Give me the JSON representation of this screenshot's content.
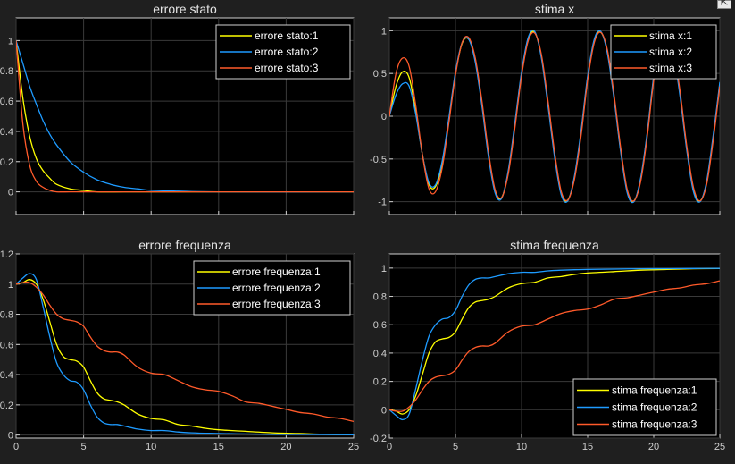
{
  "toolbar": {
    "export_icon": "export-arrow-icon"
  },
  "colors": {
    "background": "#1f1f1f",
    "axes_bg": "#000000",
    "axis": "#cfcfcf",
    "grid": "#3a3a3a",
    "series": [
      "#ffff00",
      "#1e9bff",
      "#ff5a2a"
    ]
  },
  "chart_data": [
    {
      "type": "line",
      "title": "errore stato",
      "xlim": [
        0,
        25
      ],
      "ylim": [
        -0.15,
        1.15
      ],
      "xticks": [
        0,
        5,
        10,
        15,
        20,
        25
      ],
      "yticks": [
        0,
        0.2,
        0.4,
        0.6,
        0.8,
        1
      ],
      "ytick_labels": [
        "0",
        "0.2",
        "0.4",
        "0.6",
        "0.8",
        "1"
      ],
      "show_xtick_labels": false,
      "grid": true,
      "legend": "top-right",
      "series": [
        {
          "name": "errore stato:1",
          "x": [
            0,
            0.5,
            1,
            1.5,
            2,
            2.5,
            3,
            4,
            5,
            6,
            8,
            10,
            25
          ],
          "y": [
            1,
            0.62,
            0.37,
            0.22,
            0.14,
            0.09,
            0.05,
            0.02,
            0.01,
            0,
            0,
            0,
            0
          ]
        },
        {
          "name": "errore stato:2",
          "x": [
            0,
            0.5,
            1,
            1.5,
            2,
            2.5,
            3,
            4,
            5,
            6,
            7,
            8,
            9,
            10,
            12,
            15,
            25
          ],
          "y": [
            1,
            0.85,
            0.7,
            0.58,
            0.47,
            0.38,
            0.31,
            0.2,
            0.13,
            0.08,
            0.05,
            0.03,
            0.02,
            0.01,
            0.005,
            0,
            0
          ]
        },
        {
          "name": "errore stato:3",
          "x": [
            0,
            0.5,
            1,
            1.5,
            2,
            2.5,
            3,
            4,
            5,
            25
          ],
          "y": [
            1,
            0.45,
            0.18,
            0.07,
            0.03,
            0.01,
            0,
            0,
            0,
            0
          ]
        }
      ]
    },
    {
      "type": "line",
      "title": "stima x",
      "xlim": [
        0,
        25
      ],
      "ylim": [
        -1.15,
        1.15
      ],
      "xticks": [
        0,
        5,
        10,
        15,
        20,
        25
      ],
      "yticks": [
        -1,
        -0.5,
        0,
        0.5,
        1
      ],
      "ytick_labels": [
        "-1",
        "-0.5",
        "0",
        "0.5",
        "1"
      ],
      "show_xtick_labels": false,
      "grid": true,
      "legend": "top-right",
      "series": [
        {
          "name": "stima x:1",
          "x": [
            0,
            0.5,
            1,
            1.5,
            2,
            2.5,
            3,
            3.5,
            4,
            4.5,
            5,
            5.5,
            6,
            6.5,
            7,
            7.5,
            8,
            8.5,
            9,
            9.5,
            10,
            10.5,
            11,
            11.5,
            12,
            12.5,
            13,
            13.5,
            14,
            14.5,
            15,
            15.5,
            16,
            16.5,
            17,
            17.5,
            18,
            18.5,
            19,
            19.5,
            20,
            20.5,
            21,
            21.5,
            22,
            22.5,
            23,
            23.5,
            24,
            24.5,
            25
          ],
          "y": [
            0,
            0.35,
            0.52,
            0.45,
            0.05,
            -0.45,
            -0.8,
            -0.82,
            -0.55,
            -0.05,
            0.5,
            0.85,
            0.9,
            0.65,
            0.15,
            -0.45,
            -0.88,
            -0.95,
            -0.65,
            -0.1,
            0.5,
            0.9,
            0.98,
            0.7,
            0.15,
            -0.45,
            -0.9,
            -0.98,
            -0.72,
            -0.2,
            0.45,
            0.88,
            0.98,
            0.75,
            0.22,
            -0.4,
            -0.88,
            -0.99,
            -0.75,
            -0.22,
            0.45,
            0.88,
            0.98,
            0.75,
            0.25,
            -0.38,
            -0.85,
            -0.99,
            -0.78,
            -0.25,
            0.38
          ]
        },
        {
          "name": "stima x:2",
          "x": [
            0,
            0.5,
            1,
            1.5,
            2,
            2.5,
            3,
            3.5,
            4,
            4.5,
            5,
            5.5,
            6,
            6.5,
            7,
            7.5,
            8,
            8.5,
            9,
            9.5,
            10,
            10.5,
            11,
            11.5,
            12,
            12.5,
            13,
            13.5,
            14,
            14.5,
            15,
            15.5,
            16,
            16.5,
            17,
            17.5,
            18,
            18.5,
            19,
            19.5,
            20,
            20.5,
            21,
            21.5,
            22,
            22.5,
            23,
            23.5,
            24,
            24.5,
            25
          ],
          "y": [
            0,
            0.25,
            0.38,
            0.35,
            0.02,
            -0.45,
            -0.78,
            -0.8,
            -0.52,
            -0.02,
            0.52,
            0.86,
            0.9,
            0.63,
            0.12,
            -0.48,
            -0.9,
            -0.96,
            -0.63,
            -0.07,
            0.52,
            0.92,
            0.99,
            0.68,
            0.12,
            -0.48,
            -0.92,
            -0.99,
            -0.7,
            -0.17,
            0.47,
            0.9,
            0.99,
            0.73,
            0.2,
            -0.42,
            -0.9,
            -1,
            -0.73,
            -0.2,
            0.47,
            0.9,
            0.99,
            0.73,
            0.22,
            -0.4,
            -0.88,
            -1,
            -0.76,
            -0.22,
            0.4
          ]
        },
        {
          "name": "stima x:3",
          "x": [
            0,
            0.5,
            1,
            1.5,
            2,
            2.5,
            3,
            3.5,
            4,
            4.5,
            5,
            5.5,
            6,
            6.5,
            7,
            7.5,
            8,
            8.5,
            9,
            9.5,
            10,
            10.5,
            11,
            11.5,
            12,
            12.5,
            13,
            13.5,
            14,
            14.5,
            15,
            15.5,
            16,
            16.5,
            17,
            17.5,
            18,
            18.5,
            19,
            19.5,
            20,
            20.5,
            21,
            21.5,
            22,
            22.5,
            23,
            23.5,
            24,
            24.5,
            25
          ],
          "y": [
            0,
            0.5,
            0.68,
            0.58,
            0.12,
            -0.45,
            -0.85,
            -0.88,
            -0.6,
            -0.08,
            0.48,
            0.86,
            0.92,
            0.68,
            0.18,
            -0.42,
            -0.86,
            -0.95,
            -0.67,
            -0.13,
            0.47,
            0.88,
            0.97,
            0.72,
            0.18,
            -0.42,
            -0.88,
            -0.98,
            -0.74,
            -0.23,
            0.42,
            0.86,
            0.98,
            0.77,
            0.25,
            -0.37,
            -0.86,
            -0.99,
            -0.77,
            -0.25,
            0.42,
            0.86,
            0.98,
            0.77,
            0.28,
            -0.35,
            -0.83,
            -0.99,
            -0.8,
            -0.28,
            0.35
          ]
        }
      ]
    },
    {
      "type": "line",
      "title": "errore frequenza",
      "xlim": [
        0,
        25
      ],
      "ylim": [
        -0.02,
        1.2
      ],
      "xticks": [
        0,
        5,
        10,
        15,
        20,
        25
      ],
      "yticks": [
        0,
        0.2,
        0.4,
        0.6,
        0.8,
        1,
        1.2
      ],
      "ytick_labels": [
        "0",
        "0.2",
        "0.4",
        "0.6",
        "0.8",
        "1",
        "1.2"
      ],
      "xtick_labels": [
        "0",
        "5",
        "10",
        "15",
        "20",
        "25"
      ],
      "show_xtick_labels": true,
      "grid": true,
      "legend": "top-right",
      "series": [
        {
          "name": "errore frequenza:1",
          "x": [
            0,
            0.5,
            1,
            1.5,
            2,
            2.5,
            3,
            3.5,
            4,
            4.5,
            5,
            5.5,
            6,
            6.5,
            7,
            7.5,
            8,
            9,
            10,
            11,
            12,
            13,
            14,
            15,
            17,
            19,
            21,
            23,
            25
          ],
          "y": [
            1,
            1.01,
            1.03,
            1.0,
            0.9,
            0.75,
            0.6,
            0.52,
            0.5,
            0.49,
            0.45,
            0.36,
            0.28,
            0.24,
            0.23,
            0.22,
            0.2,
            0.14,
            0.11,
            0.1,
            0.07,
            0.06,
            0.045,
            0.035,
            0.025,
            0.015,
            0.01,
            0.005,
            0.003
          ]
        },
        {
          "name": "errore frequenza:2",
          "x": [
            0,
            0.5,
            1,
            1.5,
            2,
            2.5,
            3,
            3.5,
            4,
            4.5,
            5,
            5.5,
            6,
            6.5,
            7,
            7.5,
            8,
            9,
            10,
            11,
            12,
            13,
            14,
            15,
            17,
            19,
            21,
            23,
            25
          ],
          "y": [
            1,
            1.04,
            1.07,
            1.03,
            0.85,
            0.65,
            0.48,
            0.4,
            0.36,
            0.35,
            0.3,
            0.2,
            0.12,
            0.08,
            0.07,
            0.07,
            0.06,
            0.04,
            0.03,
            0.03,
            0.02,
            0.015,
            0.012,
            0.01,
            0.007,
            0.005,
            0.004,
            0.003,
            0.002
          ]
        },
        {
          "name": "errore frequenza:3",
          "x": [
            0,
            0.5,
            1,
            1.5,
            2,
            2.5,
            3,
            3.5,
            4,
            4.5,
            5,
            5.5,
            6,
            6.5,
            7,
            7.5,
            8,
            9,
            10,
            11,
            12,
            13,
            14,
            15,
            16,
            17,
            18,
            19,
            20,
            21,
            22,
            23,
            24,
            25
          ],
          "y": [
            1,
            1.01,
            1.01,
            0.98,
            0.93,
            0.86,
            0.8,
            0.77,
            0.76,
            0.75,
            0.72,
            0.65,
            0.59,
            0.56,
            0.55,
            0.55,
            0.53,
            0.45,
            0.41,
            0.4,
            0.36,
            0.32,
            0.3,
            0.29,
            0.26,
            0.22,
            0.21,
            0.19,
            0.17,
            0.15,
            0.14,
            0.12,
            0.11,
            0.09
          ]
        }
      ]
    },
    {
      "type": "line",
      "title": "stima frequenza",
      "xlim": [
        0,
        25
      ],
      "ylim": [
        -0.2,
        1.1
      ],
      "xticks": [
        0,
        5,
        10,
        15,
        20,
        25
      ],
      "yticks": [
        -0.2,
        0,
        0.2,
        0.4,
        0.6,
        0.8,
        1
      ],
      "ytick_labels": [
        "-0.2",
        "0",
        "0.2",
        "0.4",
        "0.6",
        "0.8",
        "1"
      ],
      "xtick_labels": [
        "0",
        "5",
        "10",
        "15",
        "20",
        "25"
      ],
      "show_xtick_labels": true,
      "grid": true,
      "legend": "bottom-right",
      "series": [
        {
          "name": "stima frequenza:1",
          "x": [
            0,
            0.5,
            1,
            1.5,
            2,
            2.5,
            3,
            3.5,
            4,
            4.5,
            5,
            5.5,
            6,
            6.5,
            7,
            7.5,
            8,
            9,
            10,
            11,
            12,
            13,
            14,
            15,
            17,
            19,
            21,
            23,
            25
          ],
          "y": [
            0,
            -0.01,
            -0.03,
            0,
            0.1,
            0.25,
            0.4,
            0.48,
            0.5,
            0.51,
            0.55,
            0.64,
            0.72,
            0.76,
            0.77,
            0.78,
            0.8,
            0.86,
            0.89,
            0.9,
            0.93,
            0.94,
            0.955,
            0.965,
            0.975,
            0.985,
            0.99,
            0.995,
            0.997
          ]
        },
        {
          "name": "stima frequenza:2",
          "x": [
            0,
            0.5,
            1,
            1.5,
            2,
            2.5,
            3,
            3.5,
            4,
            4.5,
            5,
            5.5,
            6,
            6.5,
            7,
            7.5,
            8,
            9,
            10,
            11,
            12,
            13,
            14,
            15,
            17,
            19,
            21,
            23,
            25
          ],
          "y": [
            0,
            -0.04,
            -0.07,
            -0.03,
            0.15,
            0.35,
            0.52,
            0.6,
            0.64,
            0.65,
            0.7,
            0.8,
            0.88,
            0.92,
            0.93,
            0.93,
            0.94,
            0.96,
            0.97,
            0.97,
            0.98,
            0.985,
            0.988,
            0.99,
            0.993,
            0.995,
            0.996,
            0.997,
            0.998
          ]
        },
        {
          "name": "stima frequenza:3",
          "x": [
            0,
            0.5,
            1,
            1.5,
            2,
            2.5,
            3,
            3.5,
            4,
            4.5,
            5,
            5.5,
            6,
            6.5,
            7,
            7.5,
            8,
            9,
            10,
            11,
            12,
            13,
            14,
            15,
            16,
            17,
            18,
            19,
            20,
            21,
            22,
            23,
            24,
            25
          ],
          "y": [
            0,
            -0.01,
            -0.01,
            0.02,
            0.07,
            0.14,
            0.2,
            0.23,
            0.24,
            0.25,
            0.28,
            0.35,
            0.41,
            0.44,
            0.45,
            0.45,
            0.47,
            0.55,
            0.59,
            0.6,
            0.64,
            0.68,
            0.7,
            0.71,
            0.74,
            0.78,
            0.79,
            0.81,
            0.83,
            0.85,
            0.86,
            0.88,
            0.89,
            0.91
          ]
        }
      ]
    }
  ]
}
